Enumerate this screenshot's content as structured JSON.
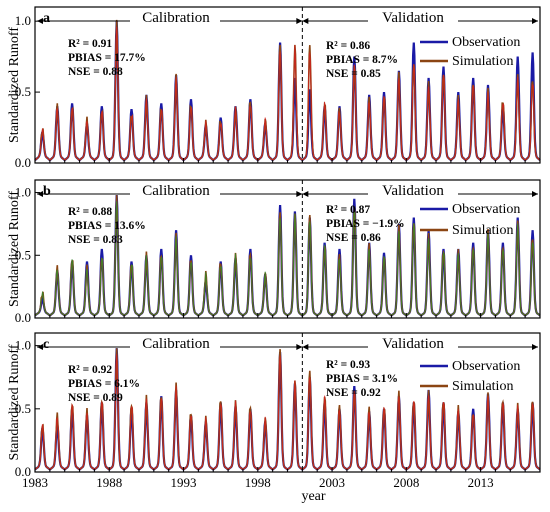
{
  "chart_data": [
    {
      "type": "line",
      "panel": "a",
      "ylabel": "Standardized Runoff",
      "ylim": [
        0,
        1.1
      ],
      "yticks": [
        "0.0",
        "0.5",
        "1.0"
      ],
      "xlim": [
        1983,
        2017
      ],
      "split_year": 2001,
      "periods": {
        "calibration": "Calibration",
        "validation": "Validation"
      },
      "calibration_stats": {
        "r2": "R² = 0.91",
        "pbias": "PBIAS = 17.7%",
        "nse": "NSE = 0.88"
      },
      "validation_stats": {
        "r2": "R² = 0.86",
        "pbias": "PBIAS = 8.7%",
        "nse": "NSE = 0.85"
      },
      "legend": [
        "Observation",
        "Simulation"
      ],
      "legend_placement": "top-right",
      "colors": {
        "observation": "#1a1aa6",
        "simulation": "#8b4513",
        "accent": "#d62020"
      },
      "peak_years": [
        1983.5,
        1984.5,
        1985.5,
        1986.5,
        1987.5,
        1988.5,
        1989.5,
        1990.5,
        1991.5,
        1992.5,
        1993.5,
        1994.5,
        1995.5,
        1996.5,
        1997.5,
        1998.5,
        1999.5,
        2000.5,
        2001.5,
        2002.5,
        2003.5,
        2004.5,
        2005.5,
        2006.5,
        2007.5,
        2008.5,
        2009.5,
        2010.5,
        2011.5,
        2012.5,
        2013.5,
        2014.5,
        2015.5,
        2016.5
      ],
      "observation_peaks": [
        0.22,
        0.4,
        0.42,
        0.28,
        0.4,
        1.0,
        0.38,
        0.48,
        0.42,
        0.62,
        0.45,
        0.27,
        0.32,
        0.4,
        0.45,
        0.28,
        0.85,
        0.6,
        0.52,
        0.4,
        0.4,
        0.75,
        0.48,
        0.5,
        0.65,
        0.85,
        0.6,
        0.68,
        0.5,
        0.6,
        0.55,
        0.4,
        0.75,
        0.78
      ],
      "simulation_peaks": [
        0.24,
        0.4,
        0.4,
        0.3,
        0.38,
        0.98,
        0.35,
        0.45,
        0.4,
        0.6,
        0.42,
        0.28,
        0.3,
        0.38,
        0.44,
        0.3,
        0.84,
        0.83,
        0.83,
        0.42,
        0.38,
        0.7,
        0.45,
        0.48,
        0.62,
        0.72,
        0.55,
        0.65,
        0.45,
        0.58,
        0.5,
        0.45,
        0.6,
        0.6
      ]
    },
    {
      "type": "line",
      "panel": "b",
      "ylabel": "Standardized Runoff",
      "ylim": [
        0,
        1.1
      ],
      "yticks": [
        "0.0",
        "0.5",
        "1.0"
      ],
      "xlim": [
        1983,
        2017
      ],
      "split_year": 2001,
      "periods": {
        "calibration": "Calibration",
        "validation": "Validation"
      },
      "calibration_stats": {
        "r2": "R² = 0.88",
        "pbias": "PBIAS = 13.6%",
        "nse": "NSE = 0.83"
      },
      "validation_stats": {
        "r2": "R² = 0.87",
        "pbias": "PBIAS = −1.9%",
        "nse": "NSE = 0.86"
      },
      "legend": [
        "Observation",
        "Simulation"
      ],
      "legend_placement": "top-right",
      "colors": {
        "observation": "#1a1aa6",
        "simulation": "#8b4513",
        "accent": "#2e8b2e"
      },
      "peak_years": [
        1983.5,
        1984.5,
        1985.5,
        1986.5,
        1987.5,
        1988.5,
        1989.5,
        1990.5,
        1991.5,
        1992.5,
        1993.5,
        1994.5,
        1995.5,
        1996.5,
        1997.5,
        1998.5,
        1999.5,
        2000.5,
        2001.5,
        2002.5,
        2003.5,
        2004.5,
        2005.5,
        2006.5,
        2007.5,
        2008.5,
        2009.5,
        2010.5,
        2011.5,
        2012.5,
        2013.5,
        2014.5,
        2015.5,
        2016.5
      ],
      "observation_peaks": [
        0.15,
        0.38,
        0.45,
        0.45,
        0.55,
        0.98,
        0.45,
        0.5,
        0.55,
        0.7,
        0.5,
        0.3,
        0.45,
        0.48,
        0.55,
        0.35,
        0.9,
        0.85,
        0.8,
        0.6,
        0.55,
        0.95,
        0.6,
        0.52,
        0.75,
        0.8,
        0.7,
        0.55,
        0.55,
        0.6,
        0.7,
        0.6,
        0.8,
        0.7
      ],
      "simulation_peaks": [
        0.2,
        0.4,
        0.48,
        0.4,
        0.5,
        0.95,
        0.45,
        0.5,
        0.52,
        0.65,
        0.48,
        0.35,
        0.45,
        0.5,
        0.52,
        0.35,
        0.85,
        0.83,
        0.82,
        0.58,
        0.5,
        0.9,
        0.58,
        0.5,
        0.72,
        0.78,
        0.65,
        0.55,
        0.52,
        0.58,
        0.68,
        0.58,
        0.75,
        0.65
      ]
    },
    {
      "type": "line",
      "panel": "c",
      "ylabel": "Standardized Runoff",
      "xlabel": "year",
      "ylim": [
        0,
        1.1
      ],
      "yticks": [
        "0.0",
        "0.5",
        "1.0"
      ],
      "xlim": [
        1983,
        2017
      ],
      "xticks": [
        1983,
        1988,
        1993,
        1998,
        2003,
        2008,
        2013
      ],
      "split_year": 2001,
      "periods": {
        "calibration": "Calibration",
        "validation": "Validation"
      },
      "calibration_stats": {
        "r2": "R² = 0.92",
        "pbias": "PBIAS = 6.1%",
        "nse": "NSE = 0.89"
      },
      "validation_stats": {
        "r2": "R² = 0.93",
        "pbias": "PBIAS = 3.1%",
        "nse": "NSE = 0.92"
      },
      "legend": [
        "Observation",
        "Simulation"
      ],
      "legend_placement": "top-right",
      "colors": {
        "observation": "#1a1aa6",
        "simulation": "#8b4513",
        "accent": "#d62020"
      },
      "peak_years": [
        1983.5,
        1984.5,
        1985.5,
        1986.5,
        1987.5,
        1988.5,
        1989.5,
        1990.5,
        1991.5,
        1992.5,
        1993.5,
        1994.5,
        1995.5,
        1996.5,
        1997.5,
        1998.5,
        1999.5,
        2000.5,
        2001.5,
        2002.5,
        2003.5,
        2004.5,
        2005.5,
        2006.5,
        2007.5,
        2008.5,
        2009.5,
        2010.5,
        2011.5,
        2012.5,
        2013.5,
        2014.5,
        2015.5,
        2016.5
      ],
      "observation_peaks": [
        0.35,
        0.38,
        0.5,
        0.45,
        0.55,
        0.98,
        0.5,
        0.55,
        0.6,
        0.65,
        0.45,
        0.4,
        0.55,
        0.52,
        0.5,
        0.4,
        0.95,
        0.7,
        0.75,
        0.55,
        0.5,
        0.68,
        0.48,
        0.5,
        0.6,
        0.55,
        0.65,
        0.55,
        0.48,
        0.5,
        0.62,
        0.55,
        0.5,
        0.55
      ],
      "simulation_peaks": [
        0.38,
        0.45,
        0.55,
        0.48,
        0.58,
        0.95,
        0.55,
        0.58,
        0.62,
        0.68,
        0.48,
        0.42,
        0.58,
        0.55,
        0.52,
        0.42,
        0.98,
        0.72,
        0.8,
        0.6,
        0.52,
        0.65,
        0.5,
        0.52,
        0.62,
        0.58,
        0.62,
        0.58,
        0.5,
        0.48,
        0.6,
        0.58,
        0.52,
        0.58
      ]
    }
  ]
}
